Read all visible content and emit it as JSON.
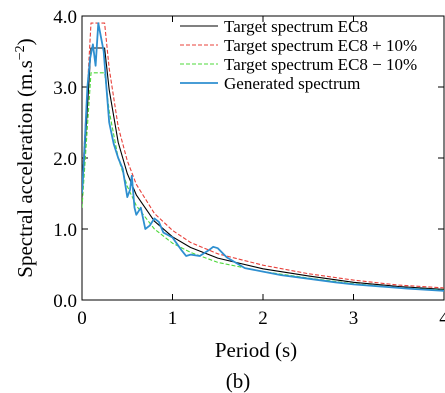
{
  "chart_data": {
    "type": "line",
    "xlabel": "Period (s)",
    "ylabel": "Spectral acceleration (m.s",
    "ylabel_sup": "−2",
    "ylabel_end": ")",
    "caption": "(b)",
    "xlim": [
      0,
      4
    ],
    "ylim": [
      0,
      4
    ],
    "xticks": [
      0,
      1,
      2,
      3,
      4
    ],
    "xtick_labels": [
      "0",
      "1",
      "2",
      "3",
      "4"
    ],
    "yticks": [
      0,
      1,
      2,
      3,
      4
    ],
    "ytick_labels": [
      "0.0",
      "1.0",
      "2.0",
      "3.0",
      "4.0"
    ],
    "grid": false,
    "legend_position": "top-right",
    "series": [
      {
        "name": "Target spectrum EC8",
        "color": "#000000",
        "dash": "solid",
        "x": [
          0,
          0.1,
          0.25,
          0.3,
          0.4,
          0.5,
          0.6,
          0.8,
          1.0,
          1.2,
          1.5,
          2.0,
          2.5,
          3.0,
          3.5,
          4.0
        ],
        "y": [
          1.45,
          3.55,
          3.55,
          2.96,
          2.22,
          1.78,
          1.48,
          1.11,
          0.89,
          0.74,
          0.59,
          0.44,
          0.34,
          0.25,
          0.19,
          0.15
        ]
      },
      {
        "name": "Target spectrum EC8 + 10%",
        "color": "#e8403a",
        "dash": "4,2",
        "x": [
          0,
          0.1,
          0.25,
          0.3,
          0.4,
          0.5,
          0.6,
          0.8,
          1.0,
          1.2,
          1.5,
          2.0,
          2.5,
          3.0,
          3.5,
          4.0
        ],
        "y": [
          1.6,
          3.9,
          3.9,
          3.26,
          2.44,
          1.96,
          1.63,
          1.22,
          0.98,
          0.81,
          0.65,
          0.49,
          0.37,
          0.28,
          0.21,
          0.17
        ]
      },
      {
        "name": "Target spectrum EC8 − 10%",
        "color": "#4cd83a",
        "dash": "4,2",
        "x": [
          0,
          0.1,
          0.25,
          0.3,
          0.4,
          0.5,
          0.6,
          0.8,
          1.0,
          1.2,
          1.5,
          2.0,
          2.5,
          3.0,
          3.5,
          4.0
        ],
        "y": [
          1.3,
          3.2,
          3.2,
          2.66,
          2.0,
          1.6,
          1.33,
          1.0,
          0.8,
          0.67,
          0.53,
          0.4,
          0.31,
          0.23,
          0.17,
          0.14
        ]
      },
      {
        "name": "Generated spectrum",
        "color": "#2e8fd0",
        "dash": "solid",
        "x": [
          0,
          0.03,
          0.06,
          0.09,
          0.12,
          0.15,
          0.18,
          0.21,
          0.24,
          0.27,
          0.3,
          0.35,
          0.4,
          0.45,
          0.5,
          0.53,
          0.55,
          0.58,
          0.6,
          0.65,
          0.7,
          0.75,
          0.8,
          0.85,
          0.9,
          1.0,
          1.1,
          1.15,
          1.2,
          1.3,
          1.4,
          1.45,
          1.5,
          1.6,
          1.8,
          2.0,
          2.2,
          2.5,
          2.8,
          3.0,
          3.3,
          3.6,
          4.0
        ],
        "y": [
          1.5,
          2.2,
          3.0,
          3.4,
          3.6,
          3.3,
          3.9,
          3.7,
          3.5,
          3.0,
          2.5,
          2.2,
          2.0,
          1.85,
          1.45,
          1.55,
          1.75,
          1.3,
          1.2,
          1.3,
          1.0,
          1.05,
          1.15,
          1.1,
          0.95,
          0.88,
          0.7,
          0.62,
          0.64,
          0.62,
          0.7,
          0.75,
          0.73,
          0.6,
          0.45,
          0.4,
          0.35,
          0.3,
          0.25,
          0.22,
          0.19,
          0.16,
          0.13
        ]
      }
    ]
  }
}
